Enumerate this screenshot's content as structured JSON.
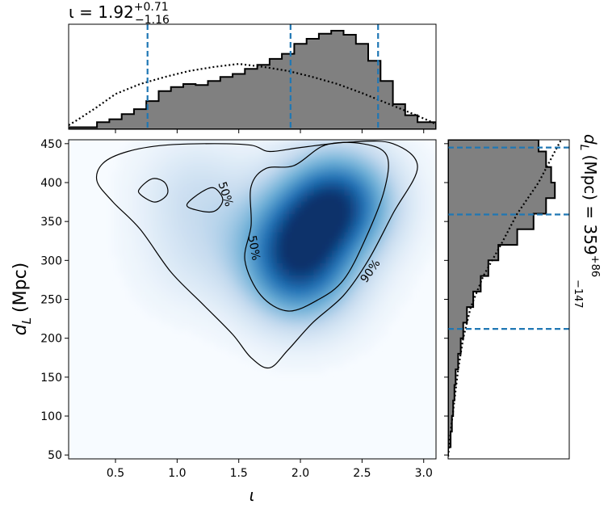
{
  "chart_data": [
    {
      "type": "heatmap",
      "role": "joint-posterior",
      "xlabel": "ι",
      "ylabel_main": "d",
      "ylabel_sub": "L",
      "ylabel_unit": "(Mpc)",
      "xlim": [
        0.12,
        3.1
      ],
      "ylim": [
        45,
        455
      ],
      "xticks": [
        0.5,
        1.0,
        1.5,
        2.0,
        2.5,
        3.0
      ],
      "xtick_labels": [
        "0.5",
        "1.0",
        "1.5",
        "2.0",
        "2.5",
        "3.0"
      ],
      "yticks": [
        50,
        100,
        150,
        200,
        250,
        300,
        350,
        400,
        450
      ],
      "ytick_labels": [
        "50",
        "100",
        "150",
        "200",
        "250",
        "300",
        "350",
        "400",
        "450"
      ],
      "colormap": "Blues",
      "density_peaks": [
        {
          "x": 2.3,
          "y": 375,
          "weight": 1.0
        },
        {
          "x": 2.0,
          "y": 280,
          "weight": 0.7
        },
        {
          "x": 1.9,
          "y": 330,
          "weight": 0.5
        },
        {
          "x": 1.15,
          "y": 390,
          "weight": 0.22
        },
        {
          "x": 1.15,
          "y": 305,
          "weight": 0.15
        }
      ],
      "contours": [
        {
          "label": "90%",
          "points": [
            [
              0.35,
              402
            ],
            [
              0.4,
              425
            ],
            [
              0.6,
              440
            ],
            [
              0.9,
              448
            ],
            [
              1.3,
              450
            ],
            [
              1.6,
              448
            ],
            [
              1.75,
              440
            ],
            [
              2.0,
              445
            ],
            [
              2.4,
              452
            ],
            [
              2.75,
              450
            ],
            [
              2.95,
              420
            ],
            [
              2.75,
              360
            ],
            [
              2.55,
              300
            ],
            [
              2.35,
              255
            ],
            [
              2.1,
              220
            ],
            [
              1.9,
              185
            ],
            [
              1.75,
              162
            ],
            [
              1.6,
              175
            ],
            [
              1.45,
              205
            ],
            [
              1.2,
              245
            ],
            [
              0.95,
              285
            ],
            [
              0.7,
              340
            ],
            [
              0.48,
              375
            ],
            [
              0.35,
              402
            ]
          ]
        },
        {
          "label": "50%",
          "points": [
            [
              1.55,
              300
            ],
            [
              1.6,
              345
            ],
            [
              1.6,
              395
            ],
            [
              1.72,
              418
            ],
            [
              1.95,
              422
            ],
            [
              2.2,
              448
            ],
            [
              2.5,
              450
            ],
            [
              2.7,
              435
            ],
            [
              2.68,
              390
            ],
            [
              2.52,
              325
            ],
            [
              2.35,
              275
            ],
            [
              2.15,
              250
            ],
            [
              1.9,
              235
            ],
            [
              1.68,
              255
            ],
            [
              1.55,
              300
            ]
          ]
        },
        {
          "label": "",
          "points": [
            [
              0.7,
              393
            ],
            [
              0.8,
              405
            ],
            [
              0.9,
              400
            ],
            [
              0.92,
              385
            ],
            [
              0.82,
              375
            ],
            [
              0.7,
              385
            ],
            [
              0.7,
              393
            ]
          ]
        },
        {
          "label": "50%",
          "points": [
            [
              1.08,
              372
            ],
            [
              1.2,
              388
            ],
            [
              1.3,
              393
            ],
            [
              1.37,
              378
            ],
            [
              1.3,
              363
            ],
            [
              1.15,
              365
            ],
            [
              1.08,
              372
            ]
          ]
        }
      ],
      "contour_labels": [
        {
          "text": "50%",
          "x": 1.39,
          "y": 385
        },
        {
          "text": "50%",
          "x": 1.62,
          "y": 316
        },
        {
          "text": "90%",
          "x": 2.57,
          "y": 286
        }
      ]
    },
    {
      "type": "histogram",
      "role": "marginal-inclination",
      "title_prefix": "ι = ",
      "title_value": "1.92",
      "title_plus": "+0.71",
      "title_minus": "−1.16",
      "xlim": [
        0.12,
        3.1
      ],
      "posterior_step": [
        [
          0.12,
          0.02
        ],
        [
          0.2,
          0.02
        ],
        [
          0.35,
          0.07
        ],
        [
          0.45,
          0.1
        ],
        [
          0.55,
          0.15
        ],
        [
          0.65,
          0.2
        ],
        [
          0.75,
          0.28
        ],
        [
          0.85,
          0.38
        ],
        [
          0.95,
          0.42
        ],
        [
          1.05,
          0.45
        ],
        [
          1.15,
          0.44
        ],
        [
          1.25,
          0.48
        ],
        [
          1.35,
          0.52
        ],
        [
          1.45,
          0.55
        ],
        [
          1.55,
          0.6
        ],
        [
          1.65,
          0.64
        ],
        [
          1.75,
          0.7
        ],
        [
          1.85,
          0.75
        ],
        [
          1.95,
          0.85
        ],
        [
          2.05,
          0.9
        ],
        [
          2.15,
          0.95
        ],
        [
          2.25,
          0.98
        ],
        [
          2.35,
          0.94
        ],
        [
          2.45,
          0.85
        ],
        [
          2.55,
          0.68
        ],
        [
          2.65,
          0.48
        ],
        [
          2.75,
          0.25
        ],
        [
          2.85,
          0.14
        ],
        [
          2.95,
          0.07
        ],
        [
          3.1,
          0.03
        ]
      ],
      "prior_dotted": [
        [
          0.12,
          0.04
        ],
        [
          0.2,
          0.1
        ],
        [
          0.35,
          0.22
        ],
        [
          0.5,
          0.35
        ],
        [
          0.7,
          0.45
        ],
        [
          0.9,
          0.52
        ],
        [
          1.1,
          0.58
        ],
        [
          1.3,
          0.62
        ],
        [
          1.5,
          0.65
        ],
        [
          1.7,
          0.62
        ],
        [
          1.9,
          0.58
        ],
        [
          2.1,
          0.52
        ],
        [
          2.3,
          0.45
        ],
        [
          2.5,
          0.36
        ],
        [
          2.7,
          0.26
        ],
        [
          2.9,
          0.16
        ],
        [
          3.05,
          0.08
        ],
        [
          3.1,
          0.05
        ]
      ],
      "quantile_lines": [
        0.76,
        1.92,
        2.63
      ]
    },
    {
      "type": "histogram",
      "role": "marginal-distance",
      "title_prefix": "(Mpc) = ",
      "title_value": "359",
      "title_plus": "+86",
      "title_minus": "−147",
      "ylim": [
        45,
        455
      ],
      "posterior_step": [
        [
          48,
          0.0
        ],
        [
          60,
          0.02
        ],
        [
          80,
          0.03
        ],
        [
          100,
          0.04
        ],
        [
          120,
          0.05
        ],
        [
          140,
          0.06
        ],
        [
          160,
          0.08
        ],
        [
          180,
          0.1
        ],
        [
          200,
          0.12
        ],
        [
          220,
          0.15
        ],
        [
          240,
          0.2
        ],
        [
          260,
          0.26
        ],
        [
          280,
          0.32
        ],
        [
          300,
          0.4
        ],
        [
          320,
          0.55
        ],
        [
          340,
          0.68
        ],
        [
          360,
          0.78
        ],
        [
          380,
          0.85
        ],
        [
          400,
          0.82
        ],
        [
          420,
          0.78
        ],
        [
          440,
          0.72
        ],
        [
          455,
          0.6
        ]
      ],
      "prior_dotted": [
        [
          48,
          0.0
        ],
        [
          80,
          0.02
        ],
        [
          120,
          0.05
        ],
        [
          160,
          0.08
        ],
        [
          200,
          0.12
        ],
        [
          240,
          0.18
        ],
        [
          280,
          0.28
        ],
        [
          320,
          0.42
        ],
        [
          360,
          0.55
        ],
        [
          400,
          0.72
        ],
        [
          440,
          0.85
        ],
        [
          455,
          0.9
        ]
      ],
      "quantile_lines": [
        212,
        359,
        445
      ]
    }
  ],
  "colors": {
    "hist_fill": "#808080",
    "quantile_line": "#1f77b4",
    "contour": "#000000",
    "density_low": "#f7fbff",
    "density_high": "#08306b"
  }
}
